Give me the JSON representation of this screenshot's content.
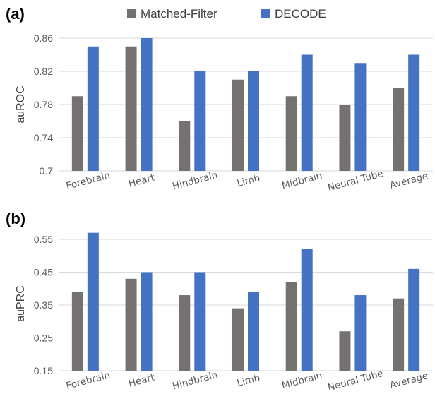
{
  "legend": {
    "series_a": "Matched-Filter",
    "series_b": "DECODE"
  },
  "colors": {
    "matched_filter": "#767171",
    "decode": "#4472c4"
  },
  "chart_data": [
    {
      "panel_label": "(a)",
      "type": "bar",
      "ylabel": "auROC",
      "ylim": [
        0.7,
        0.86
      ],
      "yticks": [
        0.7,
        0.74,
        0.78,
        0.82,
        0.86
      ],
      "ytick_labels": [
        "0.7",
        "0.74",
        "0.78",
        "0.82",
        "0.86"
      ],
      "grid": true,
      "legend_position": "top",
      "categories": [
        "Forebrain",
        "Heart",
        "Hindbrain",
        "Limb",
        "Midbrain",
        "Neural Tube",
        "Average"
      ],
      "series": [
        {
          "name": "Matched-Filter",
          "values": [
            0.79,
            0.85,
            0.76,
            0.81,
            0.79,
            0.78,
            0.8
          ]
        },
        {
          "name": "DECODE",
          "values": [
            0.85,
            0.86,
            0.82,
            0.82,
            0.84,
            0.83,
            0.84
          ]
        }
      ]
    },
    {
      "panel_label": "(b)",
      "type": "bar",
      "ylabel": "auPRC",
      "ylim": [
        0.15,
        0.55
      ],
      "yticks": [
        0.15,
        0.25,
        0.35,
        0.45,
        0.55
      ],
      "ytick_labels": [
        "0.15",
        "0.25",
        "0.35",
        "0.45",
        "0.55"
      ],
      "grid": true,
      "categories": [
        "Forebrain",
        "Heart",
        "Hindbrain",
        "Limb",
        "Midbrain",
        "Neural Tube",
        "Average"
      ],
      "series": [
        {
          "name": "Matched-Filter",
          "values": [
            0.39,
            0.43,
            0.38,
            0.34,
            0.42,
            0.27,
            0.37
          ]
        },
        {
          "name": "DECODE",
          "values": [
            0.57,
            0.45,
            0.45,
            0.39,
            0.52,
            0.38,
            0.46
          ]
        }
      ]
    }
  ]
}
